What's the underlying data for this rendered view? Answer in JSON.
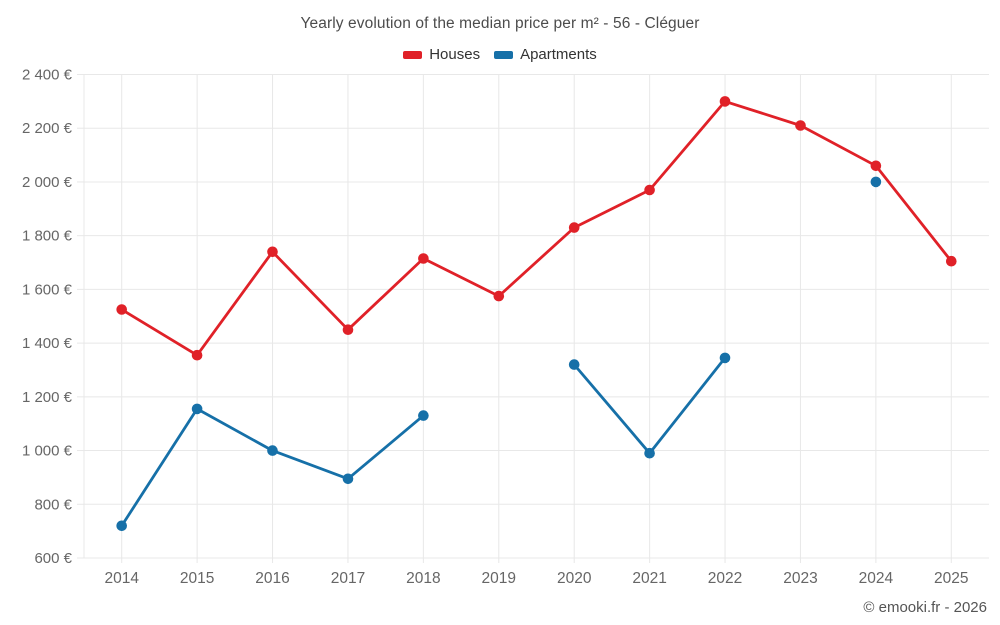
{
  "title": "Yearly evolution of the median price per m² - 56 - Cléguer",
  "legend": [
    {
      "label": "Houses",
      "color": "#e02128"
    },
    {
      "label": "Apartments",
      "color": "#1670a8"
    }
  ],
  "footer": "© emooki.fr - 2026",
  "colors": {
    "grid": "#e8e8e8",
    "axis_text": "#666666",
    "title_text": "#4c4c4c"
  },
  "chart_data": {
    "type": "line",
    "title": "Yearly evolution of the median price per m² - 56 - Cléguer",
    "categories": [
      "2014",
      "2015",
      "2016",
      "2017",
      "2018",
      "2019",
      "2020",
      "2021",
      "2022",
      "2023",
      "2024",
      "2025"
    ],
    "series": [
      {
        "name": "Houses",
        "color": "#e02128",
        "values": [
          1525,
          1355,
          1740,
          1450,
          1715,
          1575,
          1830,
          1970,
          2300,
          2210,
          2060,
          1705
        ]
      },
      {
        "name": "Apartments",
        "color": "#1670a8",
        "values": [
          720,
          1155,
          1000,
          895,
          1130,
          null,
          1320,
          990,
          1345,
          null,
          2000,
          null
        ]
      }
    ],
    "xlabel": "",
    "ylabel": "",
    "ylim": [
      600,
      2400
    ],
    "ytick_step": 200,
    "ytick_labels_top_to_bottom": [
      "2 400 €",
      "2 200 €",
      "2 000 €",
      "1 800 €",
      "1 600 €",
      "1 400 €",
      "1 200 €",
      "1 000 €",
      "800 €",
      "600 €"
    ],
    "grid": true,
    "legend_position": "top",
    "unit": "€"
  }
}
